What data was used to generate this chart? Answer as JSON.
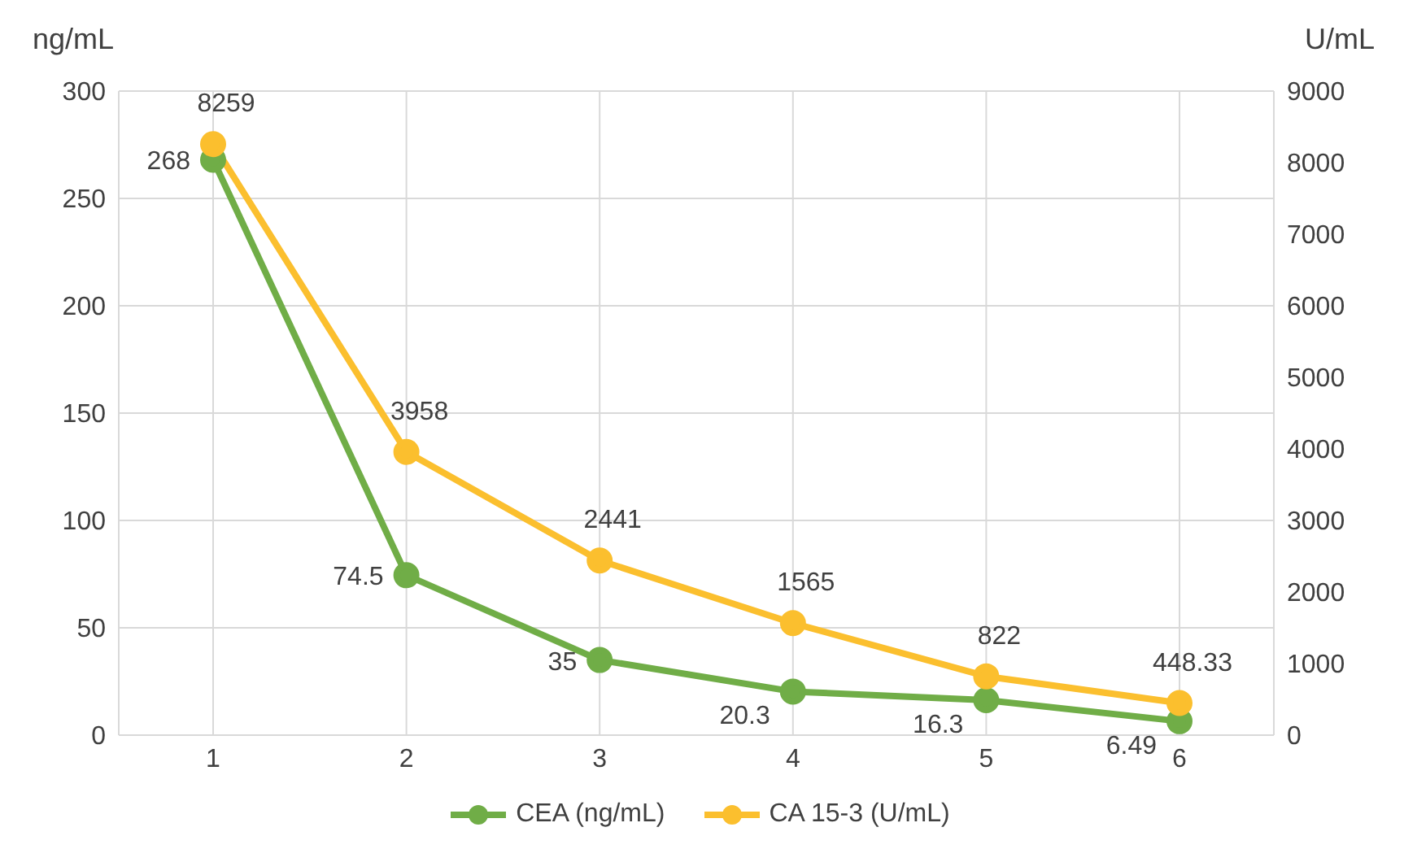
{
  "chart_data": {
    "type": "line",
    "ylabel": "ng/mL",
    "y2label": "U/mL",
    "categories": [
      "1",
      "2",
      "3",
      "4",
      "5",
      "6"
    ],
    "series": [
      {
        "name": "CEA (ng/mL)",
        "color": "#70ad47",
        "values": [
          268,
          74.5,
          35,
          20.3,
          16.3,
          6.49
        ]
      },
      {
        "name": "CA 15-3 (U/mL)",
        "color": "#fbbf2e",
        "axis": "y2",
        "values": [
          8259,
          3958,
          2441,
          1565,
          822,
          448.33
        ]
      }
    ],
    "ylim": [
      0,
      300
    ],
    "yticks": [
      0,
      50,
      100,
      150,
      200,
      250,
      300
    ],
    "y2lim": [
      0,
      9000
    ],
    "y2ticks": [
      0,
      1000,
      2000,
      3000,
      4000,
      5000,
      6000,
      7000,
      8000,
      9000
    ],
    "grid": true,
    "legend": "bottom",
    "data_labels": true,
    "marker": "circle",
    "line_style": "solid"
  }
}
